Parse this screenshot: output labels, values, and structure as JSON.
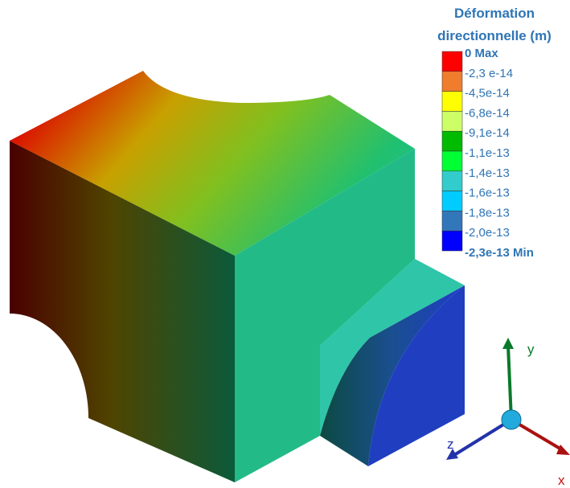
{
  "legend": {
    "title": [
      "Déformation",
      "directionnelle (m)"
    ],
    "entries": [
      {
        "label": "0 Max",
        "color": "#ff0000"
      },
      {
        "label": "-2,3 e-14",
        "color": "#ef7d2d"
      },
      {
        "label": "-4,5e-14",
        "color": "#ffff00"
      },
      {
        "label": "-6,8e-14",
        "color": "#ccff66"
      },
      {
        "label": "-9,1e-14",
        "color": "#00bb00"
      },
      {
        "label": "-1,1e-13",
        "color": "#00ff33"
      },
      {
        "label": "-1,4e-13",
        "color": "#33cccc"
      },
      {
        "label": "-1,6e-13",
        "color": "#00ccff"
      },
      {
        "label": "-1,8e-13",
        "color": "#3377bb"
      },
      {
        "label": "-2,0e-13",
        "color": "#0000ff"
      },
      {
        "label": "-2,3e-13 Min"
      }
    ]
  },
  "axes": {
    "y": "y",
    "z": "z",
    "x": "x"
  }
}
